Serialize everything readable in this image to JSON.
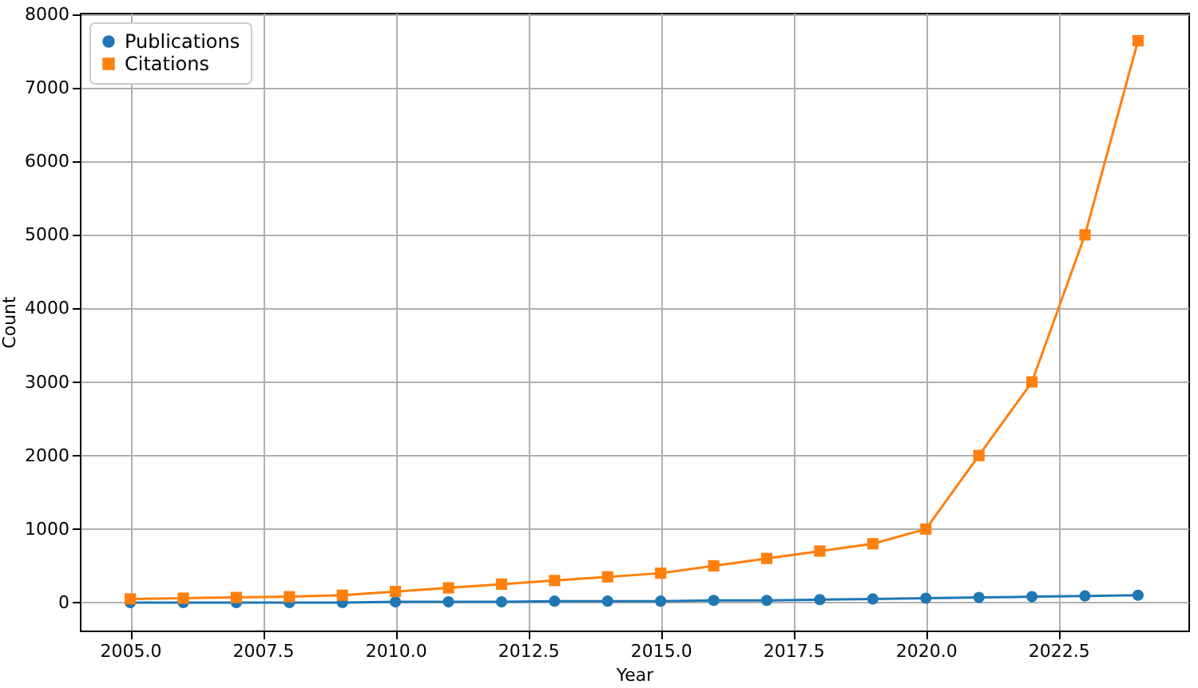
{
  "chart_data": {
    "type": "line",
    "xlabel": "Year",
    "ylabel": "Count",
    "x": [
      2005,
      2006,
      2007,
      2008,
      2009,
      2010,
      2011,
      2012,
      2013,
      2014,
      2015,
      2016,
      2017,
      2018,
      2019,
      2020,
      2021,
      2022,
      2023,
      2024
    ],
    "series": [
      {
        "name": "Publications",
        "color": "#1f77b4",
        "marker": "circle",
        "values": [
          0,
          0,
          0,
          0,
          0,
          10,
          10,
          10,
          20,
          20,
          20,
          30,
          30,
          40,
          50,
          60,
          70,
          80,
          90,
          100
        ]
      },
      {
        "name": "Citations",
        "color": "#ff7f0e",
        "marker": "square",
        "values": [
          50,
          60,
          70,
          80,
          100,
          150,
          200,
          250,
          300,
          350,
          400,
          500,
          600,
          700,
          800,
          1000,
          2000,
          3000,
          5000,
          7640
        ]
      }
    ],
    "xlim": [
      2004.05,
      2024.95
    ],
    "ylim": [
      -380,
      8020
    ],
    "xticks": [
      {
        "value": 2005,
        "label": "2005.0"
      },
      {
        "value": 2007.5,
        "label": "2007.5"
      },
      {
        "value": 2010,
        "label": "2010.0"
      },
      {
        "value": 2012.5,
        "label": "2012.5"
      },
      {
        "value": 2015,
        "label": "2015.0"
      },
      {
        "value": 2017.5,
        "label": "2017.5"
      },
      {
        "value": 2020,
        "label": "2020.0"
      },
      {
        "value": 2022.5,
        "label": "2022.5"
      }
    ],
    "yticks": [
      0,
      1000,
      2000,
      3000,
      4000,
      5000,
      6000,
      7000,
      8000
    ],
    "grid": true,
    "legend": "top left",
    "line_style": "solid"
  }
}
